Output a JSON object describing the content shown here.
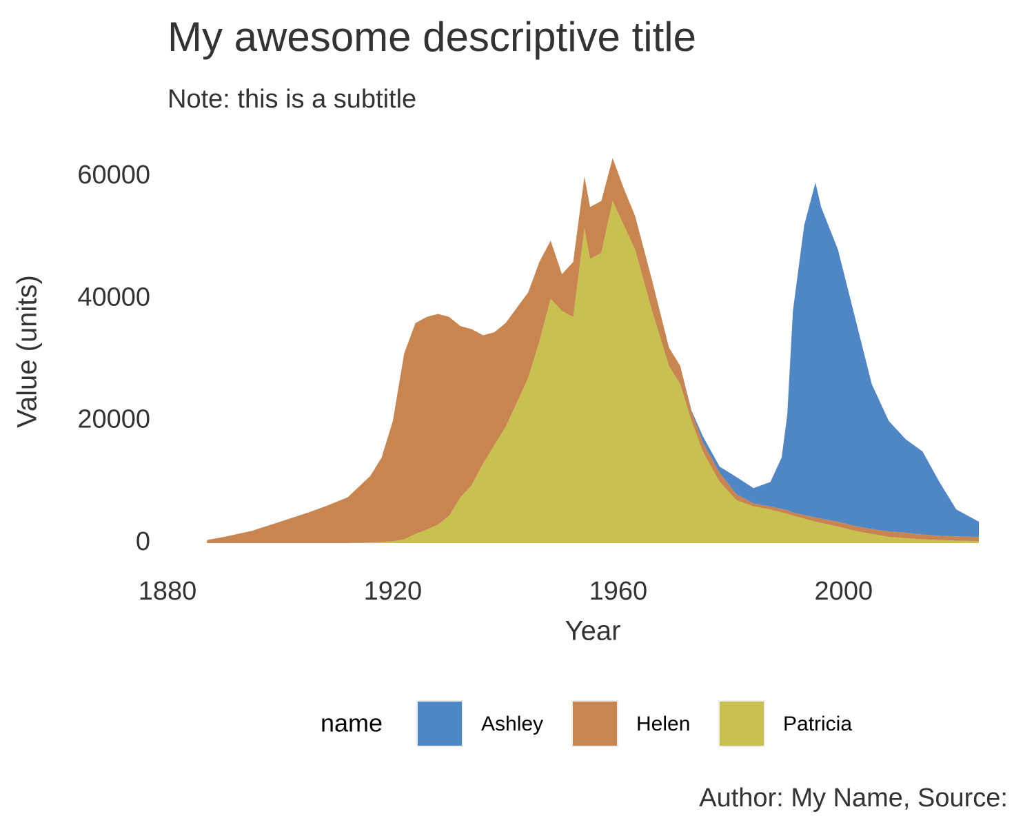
{
  "chart_data": {
    "type": "stacked-area",
    "title": "My awesome descriptive title",
    "subtitle": "Note: this is a subtitle",
    "x_label": "Year",
    "y_label": "Value (units)",
    "caption": "Author: My Name, Source:",
    "legend_title": "name",
    "legend_position": "bottom",
    "grid": false,
    "x": [
      1887,
      1890,
      1895,
      1900,
      1905,
      1908,
      1912,
      1916,
      1918,
      1920,
      1922,
      1924,
      1926,
      1928,
      1930,
      1932,
      1934,
      1936,
      1938,
      1940,
      1942,
      1944,
      1946,
      1948,
      1950,
      1952,
      1954,
      1955,
      1957,
      1959,
      1961,
      1963,
      1966,
      1969,
      1971,
      1973,
      1975,
      1978,
      1981,
      1984,
      1987,
      1989,
      1990,
      1991,
      1993,
      1995,
      1996,
      1999,
      2002,
      2005,
      2008,
      2011,
      2014,
      2017,
      2020,
      2022,
      2024
    ],
    "series": [
      {
        "name": "Ashley",
        "color": "#4f86c6",
        "values": [
          0,
          0,
          0,
          0,
          0,
          0,
          0,
          0,
          0,
          0,
          0,
          0,
          0,
          0,
          0,
          0,
          0,
          0,
          0,
          0,
          0,
          0,
          0,
          0,
          0,
          0,
          0,
          0,
          0,
          0,
          0,
          0,
          0,
          0,
          0,
          200,
          1000,
          1000,
          2800,
          2500,
          4000,
          8400,
          15600,
          33000,
          47400,
          54800,
          51000,
          44500,
          34200,
          23700,
          18100,
          15300,
          13600,
          8800,
          4400,
          3450,
          2500
        ]
      },
      {
        "name": "Helen",
        "color": "#c8854f",
        "values": [
          500,
          1000,
          2000,
          3500,
          5000,
          6000,
          7500,
          10900,
          13800,
          19700,
          30400,
          34500,
          34800,
          34500,
          32500,
          28000,
          25500,
          21000,
          18500,
          17000,
          15500,
          14000,
          13000,
          9500,
          6000,
          9000,
          8500,
          8500,
          8500,
          7000,
          6000,
          5500,
          5000,
          3000,
          3000,
          1500,
          1500,
          1500,
          1000,
          500,
          500,
          600,
          600,
          500,
          600,
          700,
          700,
          800,
          800,
          800,
          900,
          900,
          800,
          700,
          700,
          700,
          700
        ]
      },
      {
        "name": "Patricia",
        "color": "#c8c150",
        "values": [
          0,
          0,
          0,
          0,
          0,
          0,
          0,
          100,
          200,
          300,
          600,
          1500,
          2200,
          3000,
          4500,
          7500,
          9500,
          13000,
          16000,
          19000,
          23000,
          27000,
          33000,
          40000,
          38000,
          37000,
          51500,
          46500,
          47500,
          56000,
          52000,
          48000,
          38000,
          29000,
          26000,
          20000,
          15000,
          10000,
          7000,
          6000,
          5500,
          5000,
          4800,
          4500,
          4000,
          3500,
          3300,
          2700,
          2000,
          1500,
          1000,
          800,
          600,
          500,
          400,
          350,
          300
        ]
      }
    ],
    "xlim": [
      1880,
      2024
    ],
    "xticks": [
      1880,
      1920,
      1960,
      2000
    ],
    "ylim": [
      0,
      66000
    ],
    "yticks": [
      0,
      20000,
      40000,
      60000
    ]
  }
}
